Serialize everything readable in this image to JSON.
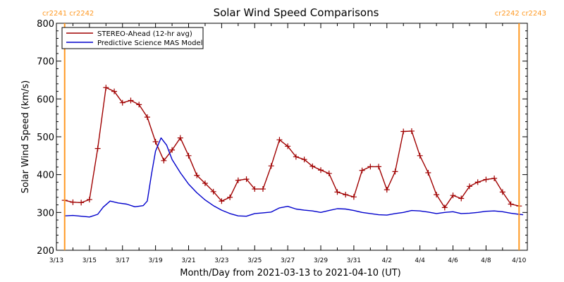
{
  "chart_data": {
    "type": "line",
    "title": "Solar Wind Speed Comparisons",
    "xlabel": "Month/Day from 2021-03-13 to 2021-04-10 (UT)",
    "ylabel": "Solar Wind Speed (km/s)",
    "xlim": [
      "2021-03-13",
      "2021-04-10T12:00"
    ],
    "ylim": [
      200,
      800
    ],
    "y_ticks": [
      200,
      300,
      400,
      500,
      600,
      700,
      800
    ],
    "x_ticks": [
      {
        "date": "2021-03-13",
        "label": "3/13"
      },
      {
        "date": "2021-03-15",
        "label": "3/15"
      },
      {
        "date": "2021-03-17",
        "label": "3/17"
      },
      {
        "date": "2021-03-19",
        "label": "3/19"
      },
      {
        "date": "2021-03-21",
        "label": "3/21"
      },
      {
        "date": "2021-03-23",
        "label": "3/23"
      },
      {
        "date": "2021-03-25",
        "label": "3/25"
      },
      {
        "date": "2021-03-27",
        "label": "3/27"
      },
      {
        "date": "2021-03-29",
        "label": "3/29"
      },
      {
        "date": "2021-03-31",
        "label": "3/31"
      },
      {
        "date": "2021-04-02",
        "label": "4/2"
      },
      {
        "date": "2021-04-04",
        "label": "4/4"
      },
      {
        "date": "2021-04-06",
        "label": "4/6"
      },
      {
        "date": "2021-04-08",
        "label": "4/8"
      },
      {
        "date": "2021-04-10",
        "label": "4/10"
      }
    ],
    "legend_position": "top-left",
    "series": [
      {
        "name": "STEREO-Ahead (12-hr avg)",
        "color": "#a00000",
        "marker": "plus",
        "points": [
          [
            "2021-03-13T12:00",
            332
          ],
          [
            "2021-03-14T00:00",
            327
          ],
          [
            "2021-03-14T12:00",
            326
          ],
          [
            "2021-03-15T00:00",
            334
          ],
          [
            "2021-03-15T12:00",
            469
          ],
          [
            "2021-03-16T00:00",
            630
          ],
          [
            "2021-03-16T12:00",
            620
          ],
          [
            "2021-03-17T00:00",
            590
          ],
          [
            "2021-03-17T12:00",
            596
          ],
          [
            "2021-03-18T00:00",
            585
          ],
          [
            "2021-03-18T12:00",
            552
          ],
          [
            "2021-03-19T00:00",
            487
          ],
          [
            "2021-03-19T12:00",
            437
          ],
          [
            "2021-03-20T00:00",
            465
          ],
          [
            "2021-03-20T12:00",
            497
          ],
          [
            "2021-03-21T00:00",
            450
          ],
          [
            "2021-03-21T12:00",
            398
          ],
          [
            "2021-03-22T00:00",
            377
          ],
          [
            "2021-03-22T12:00",
            355
          ],
          [
            "2021-03-23T00:00",
            330
          ],
          [
            "2021-03-23T12:00",
            340
          ],
          [
            "2021-03-24T00:00",
            385
          ],
          [
            "2021-03-24T12:00",
            388
          ],
          [
            "2021-03-25T00:00",
            362
          ],
          [
            "2021-03-25T12:00",
            362
          ],
          [
            "2021-03-26T00:00",
            423
          ],
          [
            "2021-03-26T12:00",
            492
          ],
          [
            "2021-03-27T00:00",
            475
          ],
          [
            "2021-03-27T12:00",
            447
          ],
          [
            "2021-03-28T00:00",
            440
          ],
          [
            "2021-03-28T12:00",
            422
          ],
          [
            "2021-03-29T00:00",
            412
          ],
          [
            "2021-03-29T12:00",
            403
          ],
          [
            "2021-03-30T00:00",
            354
          ],
          [
            "2021-03-30T12:00",
            347
          ],
          [
            "2021-03-31T00:00",
            341
          ],
          [
            "2021-03-31T12:00",
            411
          ],
          [
            "2021-04-01T00:00",
            421
          ],
          [
            "2021-04-01T12:00",
            421
          ],
          [
            "2021-04-02T00:00",
            360
          ],
          [
            "2021-04-02T12:00",
            408
          ],
          [
            "2021-04-03T00:00",
            514
          ],
          [
            "2021-04-03T12:00",
            515
          ],
          [
            "2021-04-04T00:00",
            450
          ],
          [
            "2021-04-04T12:00",
            405
          ],
          [
            "2021-04-05T00:00",
            347
          ],
          [
            "2021-04-05T12:00",
            313
          ],
          [
            "2021-04-06T00:00",
            345
          ],
          [
            "2021-04-06T12:00",
            337
          ],
          [
            "2021-04-07T00:00",
            369
          ],
          [
            "2021-04-07T12:00",
            380
          ],
          [
            "2021-04-08T00:00",
            387
          ],
          [
            "2021-04-08T12:00",
            390
          ],
          [
            "2021-04-09T00:00",
            354
          ],
          [
            "2021-04-09T12:00",
            322
          ],
          [
            "2021-04-10T00:00",
            317
          ]
        ]
      },
      {
        "name": "Predictive Science MAS Model",
        "color": "#0000cc",
        "marker": "none",
        "points": [
          [
            "2021-03-13T12:00",
            291
          ],
          [
            "2021-03-14T00:00",
            292
          ],
          [
            "2021-03-14T12:00",
            290
          ],
          [
            "2021-03-15T00:00",
            288
          ],
          [
            "2021-03-15T12:00",
            295
          ],
          [
            "2021-03-15T20:00",
            314
          ],
          [
            "2021-03-16T06:00",
            330
          ],
          [
            "2021-03-16T18:00",
            325
          ],
          [
            "2021-03-17T06:00",
            322
          ],
          [
            "2021-03-17T18:00",
            315
          ],
          [
            "2021-03-18T06:00",
            318
          ],
          [
            "2021-03-18T12:00",
            330
          ],
          [
            "2021-03-18T18:00",
            400
          ],
          [
            "2021-03-19T00:00",
            462
          ],
          [
            "2021-03-19T08:00",
            497
          ],
          [
            "2021-03-19T16:00",
            478
          ],
          [
            "2021-03-20T00:00",
            440
          ],
          [
            "2021-03-20T12:00",
            405
          ],
          [
            "2021-03-21T00:00",
            375
          ],
          [
            "2021-03-21T12:00",
            352
          ],
          [
            "2021-03-22T00:00",
            333
          ],
          [
            "2021-03-22T12:00",
            318
          ],
          [
            "2021-03-23T00:00",
            306
          ],
          [
            "2021-03-23T12:00",
            297
          ],
          [
            "2021-03-24T00:00",
            291
          ],
          [
            "2021-03-24T12:00",
            290
          ],
          [
            "2021-03-25T00:00",
            297
          ],
          [
            "2021-03-25T12:00",
            299
          ],
          [
            "2021-03-26T00:00",
            301
          ],
          [
            "2021-03-26T12:00",
            312
          ],
          [
            "2021-03-27T00:00",
            316
          ],
          [
            "2021-03-27T12:00",
            309
          ],
          [
            "2021-03-28T00:00",
            306
          ],
          [
            "2021-03-28T12:00",
            304
          ],
          [
            "2021-03-29T00:00",
            300
          ],
          [
            "2021-03-29T12:00",
            305
          ],
          [
            "2021-03-30T00:00",
            310
          ],
          [
            "2021-03-30T12:00",
            309
          ],
          [
            "2021-03-31T00:00",
            305
          ],
          [
            "2021-03-31T12:00",
            300
          ],
          [
            "2021-04-01T00:00",
            297
          ],
          [
            "2021-04-01T12:00",
            294
          ],
          [
            "2021-04-02T00:00",
            293
          ],
          [
            "2021-04-02T12:00",
            297
          ],
          [
            "2021-04-03T00:00",
            300
          ],
          [
            "2021-04-03T12:00",
            305
          ],
          [
            "2021-04-04T00:00",
            304
          ],
          [
            "2021-04-04T12:00",
            301
          ],
          [
            "2021-04-05T00:00",
            297
          ],
          [
            "2021-04-05T12:00",
            300
          ],
          [
            "2021-04-06T00:00",
            302
          ],
          [
            "2021-04-06T12:00",
            297
          ],
          [
            "2021-04-07T00:00",
            298
          ],
          [
            "2021-04-07T12:00",
            300
          ],
          [
            "2021-04-08T00:00",
            303
          ],
          [
            "2021-04-08T12:00",
            304
          ],
          [
            "2021-04-09T00:00",
            302
          ],
          [
            "2021-04-09T12:00",
            298
          ],
          [
            "2021-04-10T00:00",
            295
          ],
          [
            "2021-04-10T06:00",
            294
          ]
        ]
      }
    ],
    "markers": [
      {
        "date": "2021-03-13T12:00",
        "label": "cr2241 cr2242",
        "label_side": "left",
        "color": "#ff9922"
      },
      {
        "date": "2021-04-10T00:00",
        "label": "cr2242 cr2243",
        "label_side": "right",
        "color": "#ff9922"
      }
    ]
  }
}
